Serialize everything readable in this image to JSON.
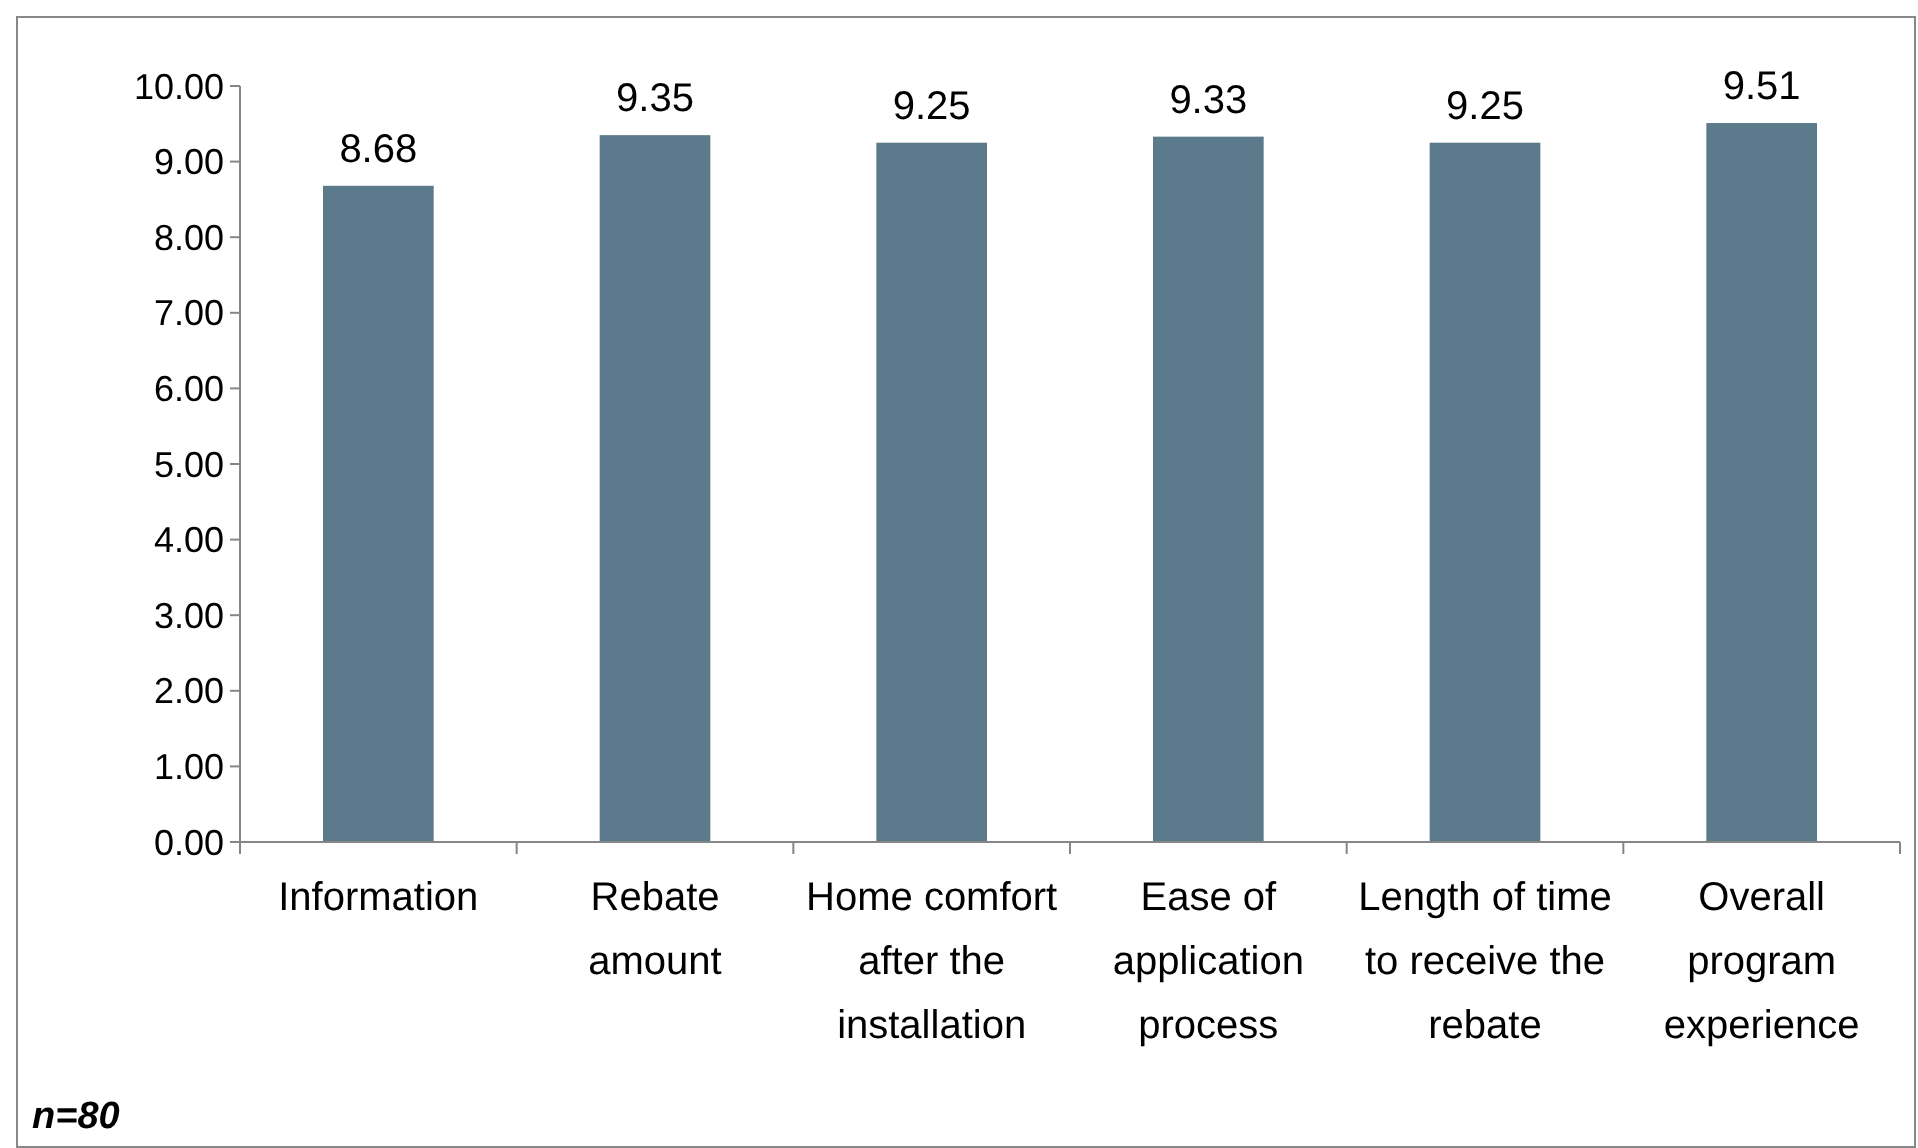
{
  "chart_data": {
    "type": "bar",
    "categories": [
      "Information",
      "Rebate amount",
      "Home comfort after the installation",
      "Ease of application process",
      "Length of time to receive the rebate",
      "Overall program experience"
    ],
    "values": [
      8.68,
      9.35,
      9.25,
      9.33,
      9.25,
      9.51
    ],
    "color": "#5b7b8d",
    "ylim": [
      0,
      10
    ],
    "yticks": [
      {
        "value": 0,
        "label": "0.00"
      },
      {
        "value": 1,
        "label": "1.00"
      },
      {
        "value": 2,
        "label": "2.00"
      },
      {
        "value": 3,
        "label": "3.00"
      },
      {
        "value": 4,
        "label": "4.00"
      },
      {
        "value": 5,
        "label": "5.00"
      },
      {
        "value": 6,
        "label": "6.00"
      },
      {
        "value": 7,
        "label": "7.00"
      },
      {
        "value": 8,
        "label": "8.00"
      },
      {
        "value": 9,
        "label": "9.00"
      },
      {
        "value": 10,
        "label": "10.00"
      }
    ],
    "data_labels": true,
    "annotations": [
      "n=80"
    ]
  }
}
